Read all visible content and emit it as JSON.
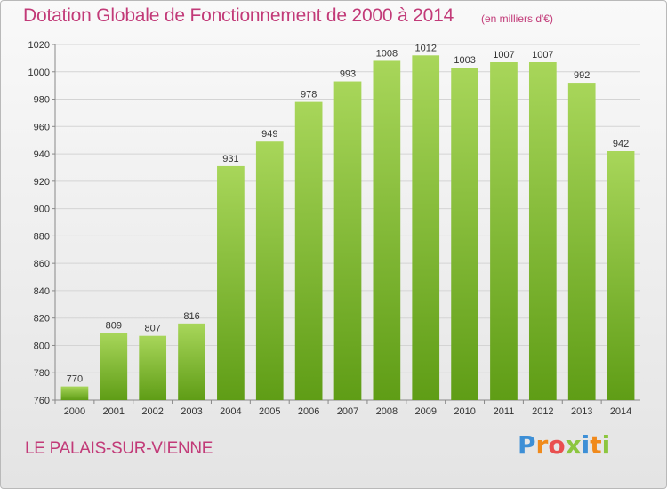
{
  "title": "Dotation Globale de Fonctionnement de 2000 à 2014",
  "unit_label": "(en milliers d'€)",
  "place": "LE PALAIS-SUR-VIENNE",
  "logo": {
    "letters": [
      "P",
      "r",
      "o",
      "x",
      "i",
      "t",
      "i"
    ],
    "colors": [
      "#3d8fd6",
      "#f08a1c",
      "#e94f4f",
      "#8cc63f",
      "#3d8fd6",
      "#f08a1c",
      "#8cc63f"
    ]
  },
  "colors": {
    "bar_top": "#a8d65a",
    "bar_bottom": "#5f9d16",
    "grid": "#d4d4d4",
    "axis": "#888888",
    "title": "#c23a78"
  },
  "chart_data": {
    "type": "bar",
    "categories": [
      "2000",
      "2001",
      "2002",
      "2003",
      "2004",
      "2005",
      "2006",
      "2007",
      "2008",
      "2009",
      "2010",
      "2011",
      "2012",
      "2013",
      "2014"
    ],
    "values": [
      770,
      809,
      807,
      816,
      931,
      949,
      978,
      993,
      1008,
      1012,
      1003,
      1007,
      1007,
      992,
      942
    ],
    "title": "Dotation Globale de Fonctionnement de 2000 à 2014",
    "xlabel": "",
    "ylabel": "",
    "ylim": [
      760,
      1020
    ],
    "yticks": [
      760,
      780,
      800,
      820,
      840,
      860,
      880,
      900,
      920,
      940,
      960,
      980,
      1000,
      1020
    ],
    "grid": true,
    "legend": "none"
  }
}
